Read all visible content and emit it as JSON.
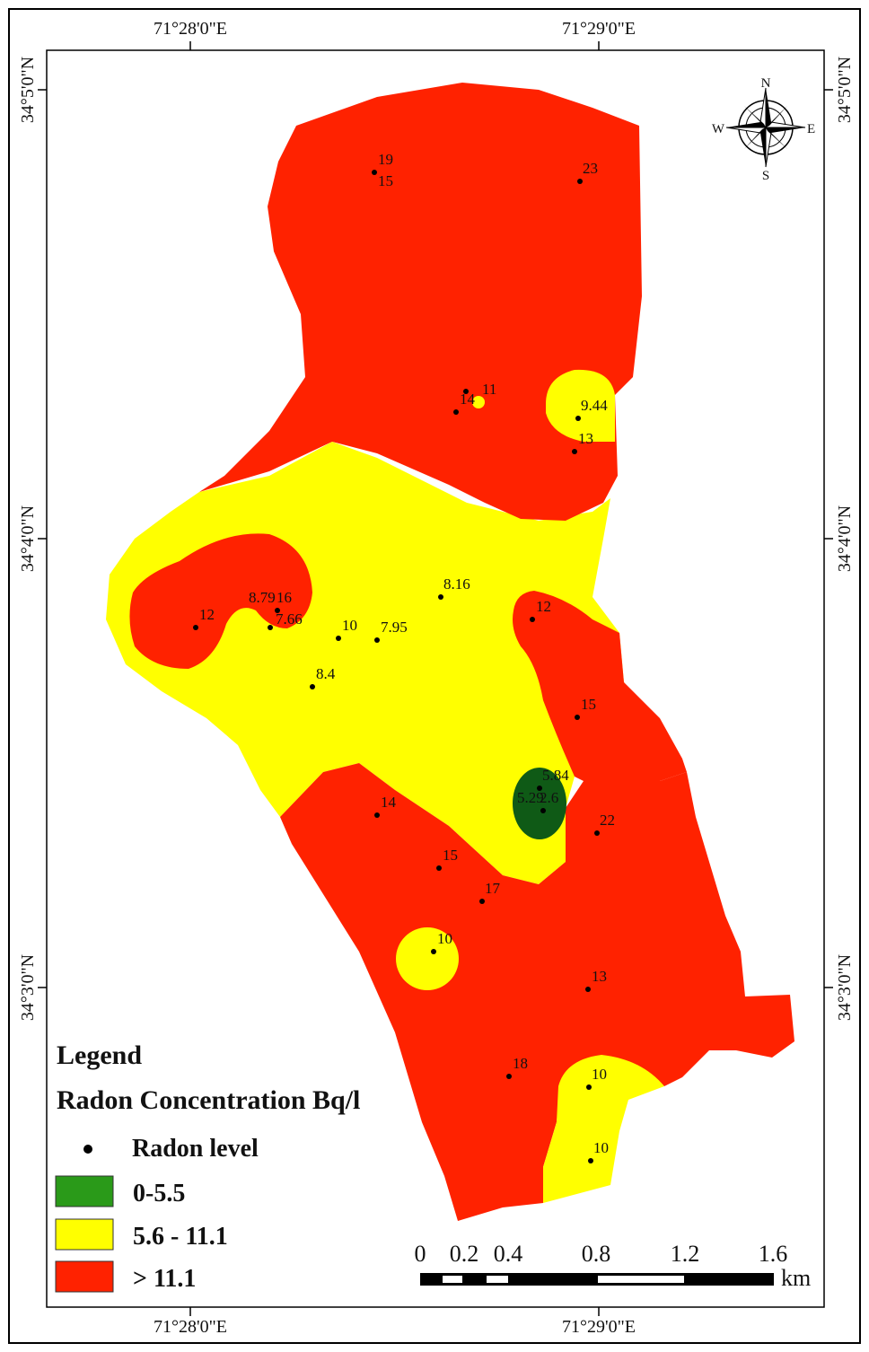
{
  "graticule": {
    "top_lon": [
      "71°28'0\"E",
      "71°29'0\"E"
    ],
    "bottom_lon": [
      "71°28'0\"E",
      "71°29'0\"E"
    ],
    "left_lat": [
      "34°5'0\"N",
      "34°4'0\"N",
      "34°3'0\"N"
    ],
    "right_lat": [
      "34°5'0\"N",
      "34°4'0\"N",
      "34°3'0\"N"
    ]
  },
  "compass": {
    "n": "N",
    "s": "S",
    "e": "E",
    "w": "W"
  },
  "legend": {
    "title": "Legend",
    "subtitle": "Radon Concentration Bq/l",
    "point_label": "Radon level",
    "classes": [
      {
        "label": "0-5.5",
        "color": "#2a9a19"
      },
      {
        "label": "5.6 - 11.1",
        "color": "#ffff00"
      },
      {
        "label": "> 11.1",
        "color": "#ff2200"
      }
    ]
  },
  "scale_bar": {
    "ticks": [
      "0",
      "0.2",
      "0.4",
      "0.8",
      "1.2",
      "1.6"
    ],
    "unit": "km"
  },
  "colors": {
    "high": "#ff2200",
    "mid": "#ffff00",
    "low": "#0f5a16",
    "border": "#000000"
  },
  "samples": [
    {
      "label": "19"
    },
    {
      "label": "15"
    },
    {
      "label": "23"
    },
    {
      "label": "11"
    },
    {
      "label": "14"
    },
    {
      "label": "9.44"
    },
    {
      "label": "13"
    },
    {
      "label": "8.79"
    },
    {
      "label": "16"
    },
    {
      "label": "7.66"
    },
    {
      "label": "12"
    },
    {
      "label": "8.16"
    },
    {
      "label": "10"
    },
    {
      "label": "7.95"
    },
    {
      "label": "8.4"
    },
    {
      "label": "12"
    },
    {
      "label": "15"
    },
    {
      "label": "5.84"
    },
    {
      "label": "5.29"
    },
    {
      "label": "2.6"
    },
    {
      "label": "14"
    },
    {
      "label": "22"
    },
    {
      "label": "15"
    },
    {
      "label": "17"
    },
    {
      "label": "10"
    },
    {
      "label": "13"
    },
    {
      "label": "18"
    },
    {
      "label": "10"
    },
    {
      "label": "10"
    }
  ]
}
